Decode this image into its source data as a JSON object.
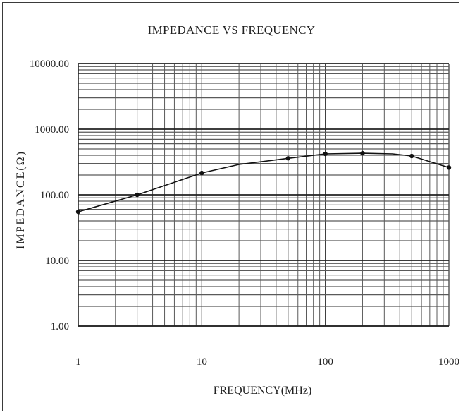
{
  "chart_data": {
    "type": "line",
    "title": "IMPEDANCE VS FREQUENCY",
    "xlabel": "FREQUENCY(MHz)",
    "ylabel": "IMPEDANCE(Ω)",
    "x_scale": "log",
    "y_scale": "log",
    "xlim": [
      1,
      1000
    ],
    "ylim": [
      1,
      10000
    ],
    "x_ticks": [
      1,
      10,
      100,
      1000
    ],
    "x_tick_labels": [
      "1",
      "10",
      "100",
      "1000"
    ],
    "y_ticks": [
      1,
      10,
      100,
      1000,
      10000
    ],
    "y_tick_labels": [
      "1.00",
      "10.00",
      "100.00",
      "1000.00",
      "10000.00"
    ],
    "grid": true,
    "series": [
      {
        "x": [
          1,
          3,
          10,
          20,
          50,
          100,
          200,
          350,
          500,
          1000
        ],
        "y": [
          55,
          100,
          215,
          290,
          360,
          420,
          430,
          420,
          390,
          260
        ],
        "markers": [
          {
            "x": 1,
            "y": 55
          },
          {
            "x": 3,
            "y": 100
          },
          {
            "x": 10,
            "y": 215
          },
          {
            "x": 50,
            "y": 360
          },
          {
            "x": 100,
            "y": 420
          },
          {
            "x": 200,
            "y": 430
          },
          {
            "x": 500,
            "y": 390
          },
          {
            "x": 1000,
            "y": 260
          }
        ]
      }
    ]
  }
}
